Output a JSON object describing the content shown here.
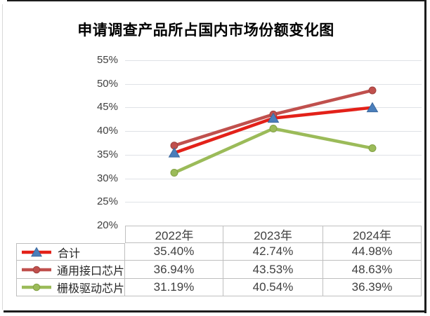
{
  "figure": {
    "title": "申请调查产品所占国内市场份额变化图"
  },
  "chart_data": {
    "type": "line",
    "title": "申请调查产品所占国内市场份额变化图",
    "categories": [
      "2022年",
      "2023年",
      "2024年"
    ],
    "series": [
      {
        "name": "合计",
        "values": [
          35.4,
          42.74,
          44.98
        ],
        "value_labels": [
          "35.40%",
          "42.74%",
          "44.98%"
        ],
        "line_color": "#e32119",
        "marker": "triangle",
        "marker_fill": "#4a7ebb",
        "marker_stroke": "#3d699e"
      },
      {
        "name": "通用接口芯片",
        "values": [
          36.94,
          43.53,
          48.63
        ],
        "value_labels": [
          "36.94%",
          "43.53%",
          "48.63%"
        ],
        "line_color": "#c0504d",
        "marker": "circle",
        "marker_fill": "#c0504d",
        "marker_stroke": "#9e413e"
      },
      {
        "name": "栅极驱动芯片",
        "values": [
          31.19,
          40.54,
          36.39
        ],
        "value_labels": [
          "31.19%",
          "40.54%",
          "36.39%"
        ],
        "line_color": "#9bbb59",
        "marker": "circle",
        "marker_fill": "#9bbb59",
        "marker_stroke": "#82a144"
      }
    ],
    "ylim": [
      20,
      55
    ],
    "ytick_step": 5,
    "ytick_labels": [
      "55%",
      "50%",
      "45%",
      "40%",
      "35%",
      "30%",
      "25%",
      "20%"
    ],
    "grid": true,
    "legend_position": "table-left",
    "colors": {
      "gridline": "#dfe2e6",
      "axis_text": "#404040",
      "table_border": "#bfbfbf",
      "table_text": "#404040",
      "title_text": "#000000"
    }
  }
}
